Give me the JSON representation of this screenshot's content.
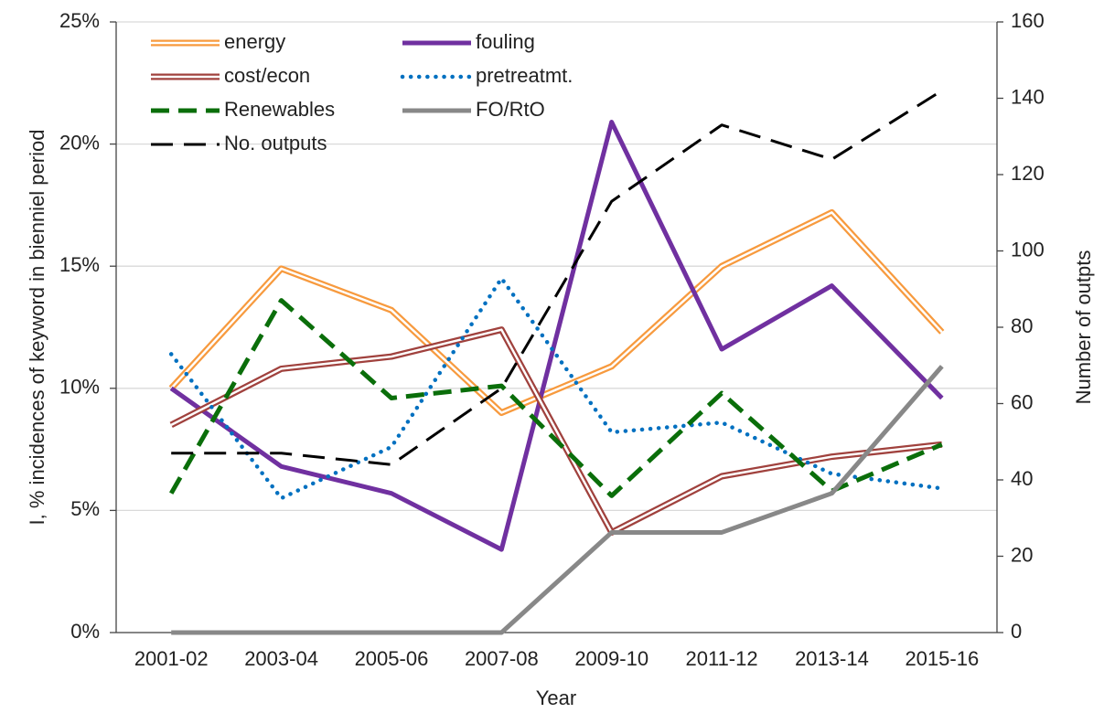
{
  "chart_data": {
    "type": "line",
    "x_label": "Year",
    "y_label": "I, % incidences of keyword in bienniel period",
    "y2_label": "Number of outpts",
    "categories": [
      "2001-02",
      "2003-04",
      "2005-06",
      "2007-08",
      "2009-10",
      "2011-12",
      "2013-14",
      "2015-16"
    ],
    "series": [
      {
        "name": "energy",
        "color": "#f79a3e",
        "style": "double",
        "values": [
          10.0,
          14.9,
          13.2,
          9.0,
          10.9,
          15.0,
          17.2,
          12.3
        ]
      },
      {
        "name": "fouling",
        "color": "#7030a0",
        "style": "solid",
        "values": [
          10.0,
          6.8,
          5.7,
          3.4,
          20.9,
          11.6,
          14.2,
          9.6
        ]
      },
      {
        "name": "cost/econ",
        "color": "#a0413d",
        "style": "double",
        "values": [
          8.5,
          10.8,
          11.3,
          12.4,
          4.1,
          6.4,
          7.2,
          7.7
        ]
      },
      {
        "name": "pretreatmt.",
        "color": "#0070c0",
        "style": "dotted",
        "values": [
          11.4,
          5.5,
          7.6,
          14.5,
          8.2,
          8.6,
          6.5,
          5.9
        ]
      },
      {
        "name": "Renewables",
        "color": "#0a6e0a",
        "style": "dashed",
        "values": [
          5.7,
          13.6,
          9.6,
          10.1,
          5.6,
          9.8,
          5.8,
          7.7
        ]
      },
      {
        "name": "FO/RtO",
        "color": "#888888",
        "style": "solid",
        "values": [
          0,
          0,
          0,
          0,
          4.1,
          4.1,
          5.7,
          10.9
        ]
      },
      {
        "name": "No. outputs",
        "color": "#000000",
        "style": "longdash",
        "axis": "y2",
        "values": [
          47,
          47,
          44,
          64,
          113,
          133,
          124,
          142
        ]
      }
    ],
    "ylim": [
      0,
      25
    ],
    "yticks": [
      {
        "value": 0,
        "label": "0%"
      },
      {
        "value": 5,
        "label": "5%"
      },
      {
        "value": 10,
        "label": "10%"
      },
      {
        "value": 15,
        "label": "15%"
      },
      {
        "value": 20,
        "label": "20%"
      },
      {
        "value": 25,
        "label": "25%"
      }
    ],
    "y2lim": [
      0,
      160
    ],
    "y2ticks": [
      0,
      20,
      40,
      60,
      80,
      100,
      120,
      140,
      160
    ],
    "grid": true
  }
}
